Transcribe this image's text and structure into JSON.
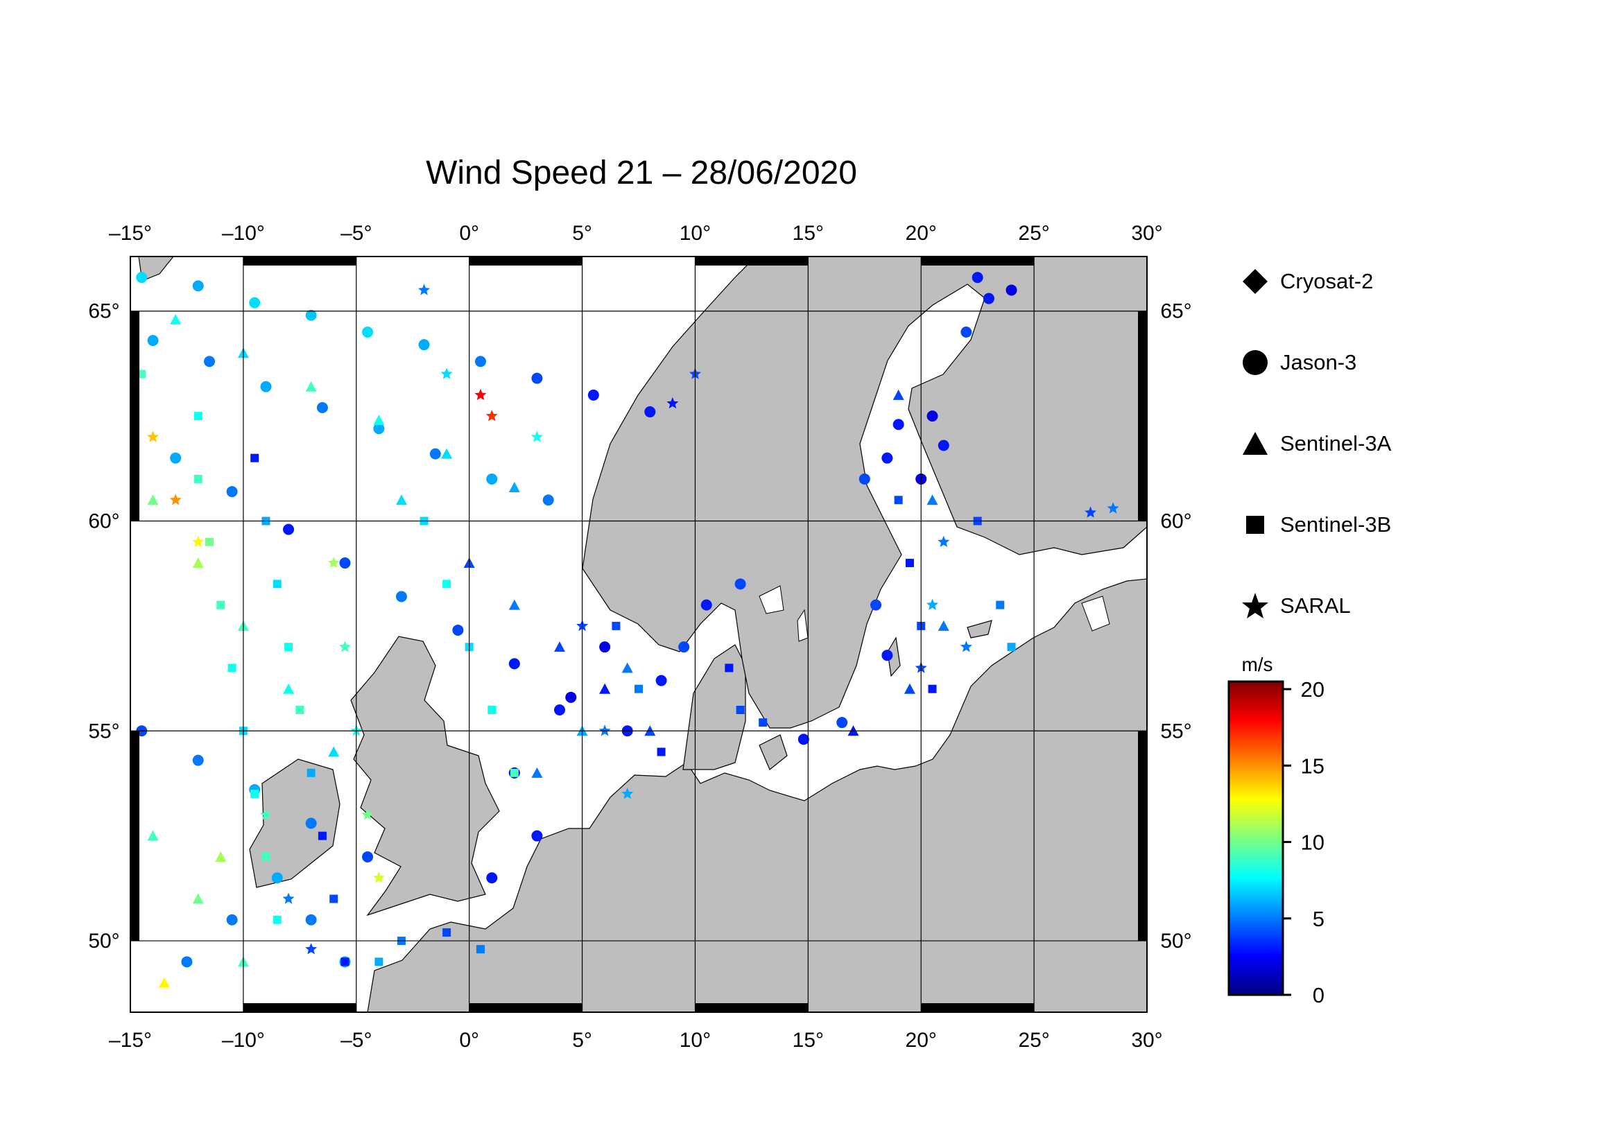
{
  "title": "Wind Speed 21 – 28/06/2020",
  "map": {
    "lon_range": [
      -15,
      30
    ],
    "lat_range": [
      48.3,
      66.3
    ],
    "lon_ticks": [
      "–15",
      "–10",
      "–5",
      "0",
      "5",
      "10",
      "15",
      "20",
      "25",
      "30"
    ],
    "lat_ticks": [
      "65",
      "60",
      "55",
      "50"
    ],
    "land_color": "#bebebe",
    "sea_color": "#ffffff",
    "grid_lines": true
  },
  "legend": {
    "items": [
      {
        "label": "Cryosat-2",
        "symbol": "diamond"
      },
      {
        "label": "Jason-3",
        "symbol": "circle"
      },
      {
        "label": "Sentinel-3A",
        "symbol": "triangle"
      },
      {
        "label": "Sentinel-3B",
        "symbol": "square"
      },
      {
        "label": "SARAL",
        "symbol": "star"
      }
    ]
  },
  "colorbar": {
    "title": "m/s",
    "min": 0,
    "max": 20.5,
    "ticks": [
      "20",
      "15",
      "10",
      "5",
      "0"
    ],
    "colors": [
      "#00007f",
      "#0000ff",
      "#007fff",
      "#00ffff",
      "#7fff7f",
      "#ffff00",
      "#ff7f00",
      "#ff0000",
      "#7f0000"
    ]
  },
  "chart_data": {
    "type": "scatter",
    "title": "Wind Speed 21 – 28/06/2020",
    "value_unit": "m/s",
    "series": [
      {
        "name": "Jason-3",
        "points": [
          [
            -14.5,
            65.8,
            7
          ],
          [
            -12,
            65.6,
            6
          ],
          [
            -9.5,
            65.2,
            7
          ],
          [
            -7,
            64.9,
            6.5
          ],
          [
            -4.5,
            64.5,
            7
          ],
          [
            -2,
            64.2,
            6
          ],
          [
            0.5,
            63.8,
            5
          ],
          [
            3,
            63.4,
            4
          ],
          [
            5.5,
            63.0,
            3
          ],
          [
            8,
            62.6,
            3
          ],
          [
            -14,
            64.3,
            6
          ],
          [
            -11.5,
            63.8,
            5
          ],
          [
            -9,
            63.2,
            6
          ],
          [
            -6.5,
            62.7,
            5
          ],
          [
            -4,
            62.2,
            6
          ],
          [
            -1.5,
            61.6,
            5
          ],
          [
            1,
            61.0,
            6
          ],
          [
            3.5,
            60.5,
            5
          ],
          [
            -13,
            61.5,
            6
          ],
          [
            -10.5,
            60.7,
            5
          ],
          [
            -8,
            59.8,
            3
          ],
          [
            -5.5,
            59.0,
            4
          ],
          [
            -3,
            58.2,
            5
          ],
          [
            -0.5,
            57.4,
            4
          ],
          [
            2,
            56.6,
            3
          ],
          [
            4.5,
            55.8,
            2
          ],
          [
            7,
            55.0,
            3
          ],
          [
            -14.5,
            55.0,
            4
          ],
          [
            -12,
            54.3,
            5
          ],
          [
            -9.5,
            53.6,
            6
          ],
          [
            -7,
            52.8,
            5
          ],
          [
            -4.5,
            52.0,
            4
          ],
          [
            2,
            54.0,
            2
          ],
          [
            4,
            55.5,
            3
          ],
          [
            6,
            57.0,
            2
          ],
          [
            3,
            52.5,
            3
          ],
          [
            1,
            51.5,
            3
          ],
          [
            18.5,
            61.5,
            3
          ],
          [
            20,
            61.0,
            2
          ],
          [
            21,
            61.8,
            3
          ],
          [
            19,
            62.3,
            3
          ],
          [
            20.5,
            62.5,
            2
          ],
          [
            17.5,
            61.0,
            4
          ],
          [
            22,
            64.5,
            4
          ],
          [
            23,
            65.3,
            3
          ],
          [
            24,
            65.5,
            2
          ],
          [
            22.5,
            65.8,
            3
          ],
          [
            12,
            58.5,
            4
          ],
          [
            10.5,
            58.0,
            3
          ],
          [
            9.5,
            57.0,
            4
          ],
          [
            8.5,
            56.2,
            3
          ],
          [
            14.8,
            54.8,
            3
          ],
          [
            16.5,
            55.2,
            4
          ],
          [
            18.5,
            56.8,
            3
          ],
          [
            18,
            58.0,
            4
          ],
          [
            -12.5,
            49.5,
            5
          ],
          [
            -10.5,
            50.5,
            5
          ],
          [
            -8.5,
            51.5,
            6
          ],
          [
            -7,
            50.5,
            5
          ],
          [
            -5.5,
            49.5,
            6
          ]
        ]
      },
      {
        "name": "Sentinel-3A",
        "points": [
          [
            -13,
            64.8,
            8
          ],
          [
            -10,
            64.0,
            7
          ],
          [
            -7,
            63.2,
            9
          ],
          [
            -4,
            62.4,
            8
          ],
          [
            -1,
            61.6,
            7
          ],
          [
            2,
            60.8,
            6
          ],
          [
            -14,
            60.5,
            10
          ],
          [
            -12,
            59.0,
            11
          ],
          [
            -10,
            57.5,
            9
          ],
          [
            -8,
            56.0,
            8
          ],
          [
            -6,
            54.5,
            7
          ],
          [
            -14,
            52.5,
            9
          ],
          [
            -12,
            51.0,
            10
          ],
          [
            -10,
            49.5,
            9
          ],
          [
            0,
            59.0,
            4
          ],
          [
            2,
            58.0,
            5
          ],
          [
            4,
            57.0,
            4
          ],
          [
            6,
            56.0,
            3
          ],
          [
            8,
            55.0,
            4
          ],
          [
            3,
            54.0,
            5
          ],
          [
            5,
            55.0,
            6
          ],
          [
            7,
            56.5,
            5
          ],
          [
            19,
            63.0,
            4
          ],
          [
            20.5,
            60.5,
            5
          ],
          [
            21,
            57.5,
            5
          ],
          [
            19.5,
            56.0,
            4
          ],
          [
            17,
            55.0,
            3
          ],
          [
            -13.5,
            49.0,
            13
          ],
          [
            -11,
            52.0,
            11
          ],
          [
            -3,
            60.5,
            7
          ]
        ]
      },
      {
        "name": "Sentinel-3B",
        "points": [
          [
            -14.5,
            63.5,
            9
          ],
          [
            -12,
            62.5,
            8
          ],
          [
            -9.5,
            61.5,
            3
          ],
          [
            -9,
            60.0,
            6
          ],
          [
            -8.5,
            58.5,
            7
          ],
          [
            -8,
            57.0,
            8
          ],
          [
            -7.5,
            55.5,
            9
          ],
          [
            -7,
            54.0,
            6
          ],
          [
            -6.5,
            52.5,
            3
          ],
          [
            -6,
            51.0,
            4
          ],
          [
            -5.5,
            49.5,
            3
          ],
          [
            -12,
            61.0,
            9
          ],
          [
            -11.5,
            59.5,
            10
          ],
          [
            -11,
            58.0,
            9
          ],
          [
            -10.5,
            56.5,
            8
          ],
          [
            -10,
            55.0,
            7
          ],
          [
            -9.5,
            53.5,
            8
          ],
          [
            -9,
            52.0,
            9
          ],
          [
            -8.5,
            50.5,
            8
          ],
          [
            -2,
            60.0,
            7
          ],
          [
            -1,
            58.5,
            8
          ],
          [
            0,
            57.0,
            7
          ],
          [
            1,
            55.5,
            8
          ],
          [
            2,
            54.0,
            9
          ],
          [
            6.5,
            57.5,
            4
          ],
          [
            7.5,
            56.0,
            5
          ],
          [
            8.5,
            54.5,
            3
          ],
          [
            19,
            60.5,
            4
          ],
          [
            19.5,
            59.0,
            3
          ],
          [
            20,
            57.5,
            4
          ],
          [
            20.5,
            56.0,
            3
          ],
          [
            22.5,
            60.0,
            4
          ],
          [
            23.5,
            58.0,
            5
          ],
          [
            24,
            57.0,
            6
          ],
          [
            11.5,
            56.5,
            3
          ],
          [
            12,
            55.5,
            4
          ],
          [
            13,
            55.2,
            4
          ],
          [
            -4,
            49.5,
            6
          ],
          [
            -3,
            50.0,
            5
          ],
          [
            -1,
            50.2,
            4
          ],
          [
            0.5,
            49.8,
            5
          ]
        ]
      },
      {
        "name": "SARAL",
        "points": [
          [
            -2,
            65.5,
            5
          ],
          [
            0.5,
            63.0,
            18
          ],
          [
            1,
            62.5,
            17
          ],
          [
            -1,
            63.5,
            7
          ],
          [
            3,
            62.0,
            8
          ],
          [
            -14,
            62.0,
            14
          ],
          [
            -13,
            60.5,
            15
          ],
          [
            -12,
            59.5,
            13
          ],
          [
            -6,
            59.0,
            11
          ],
          [
            -5.5,
            57.0,
            9
          ],
          [
            -5,
            55.0,
            8
          ],
          [
            -4.5,
            53.0,
            10
          ],
          [
            -4,
            51.5,
            12
          ],
          [
            -9,
            53.0,
            9
          ],
          [
            -8,
            51.0,
            5
          ],
          [
            -7,
            49.8,
            4
          ],
          [
            5,
            57.5,
            4
          ],
          [
            6,
            55.0,
            5
          ],
          [
            7,
            53.5,
            6
          ],
          [
            21,
            59.5,
            5
          ],
          [
            20.5,
            58.0,
            6
          ],
          [
            20,
            56.5,
            4
          ],
          [
            27.5,
            60.2,
            4
          ],
          [
            28.5,
            60.3,
            5
          ],
          [
            22,
            57.0,
            5
          ],
          [
            10,
            63.5,
            4
          ],
          [
            9,
            62.8,
            3
          ]
        ]
      },
      {
        "name": "Cryosat-2",
        "points": []
      }
    ]
  }
}
